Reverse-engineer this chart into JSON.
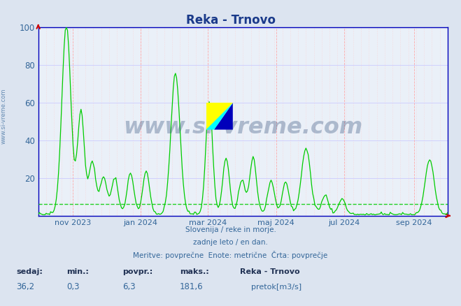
{
  "title": "Reka - Trnovo",
  "title_color": "#1a3a8a",
  "bg_color": "#dce4f0",
  "plot_bg_color": "#eaf0f8",
  "line_color": "#00cc00",
  "avg_value": 6.3,
  "ymin": 0,
  "ymax": 100,
  "yticks": [
    20,
    40,
    60,
    80,
    100
  ],
  "tick_color": "#336699",
  "axis_color": "#0000bb",
  "arrow_color": "#cc0000",
  "vgrid_major_color": "#ffaaaa",
  "vgrid_minor_color": "#ffcccc",
  "hgrid_color": "#ccccff",
  "month_ticks_norm": [
    0.0849,
    0.2493,
    0.4137,
    0.5808,
    0.7479,
    0.9178
  ],
  "month_labels": [
    "nov 2023",
    "jan 2024",
    "mar 2024",
    "maj 2024",
    "jul 2024",
    "sep 2024"
  ],
  "subtitle_lines": [
    "Slovenija / reke in morje.",
    "zadnje leto / en dan.",
    "Meritve: povprečne  Enote: metrične  Črta: povprečje"
  ],
  "footer_labels": [
    "sedaj:",
    "min.:",
    "povpr.:",
    "maks.:"
  ],
  "footer_values": [
    "36,2",
    "0,3",
    "6,3",
    "181,6"
  ],
  "footer_series_name": "Reka - Trnovo",
  "footer_legend_label": "pretok[m3/s]",
  "footer_legend_color": "#00cc00",
  "watermark_text": "www.si-vreme.com",
  "watermark_color": "#1a3a6a",
  "watermark_alpha": 0.3,
  "side_watermark": "www.si-vreme.com",
  "side_watermark_color": "#336699",
  "logo_yellow": "#ffff00",
  "logo_cyan": "#00ffff",
  "logo_blue": "#0000bb"
}
